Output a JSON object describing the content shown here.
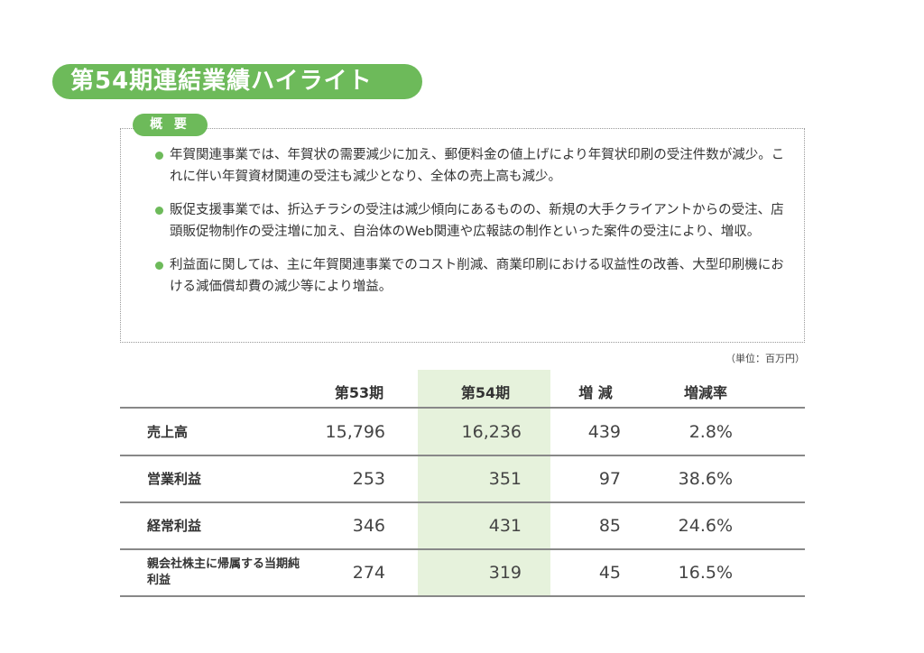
{
  "title": "第54期連結業績ハイライト",
  "summary": {
    "tag": "概 要",
    "bullets": [
      "年賀関連事業では、年賀状の需要減少に加え、郵便料金の値上げにより年賀状印刷の受注件数が減少。これに伴い年賀資材関連の受注も減少となり、全体の売上高も減少。",
      "販促支援事業では、折込チラシの受注は減少傾向にあるものの、新規の大手クライアントからの受注、店頭販促物制作の受注増に加え、自治体のWeb関連や広報誌の制作といった案件の受注により、増収。",
      "利益面に関しては、主に年賀関連事業でのコスト削減、商業印刷における収益性の改善、大型印刷機における減価償却費の減少等により増益。"
    ]
  },
  "table": {
    "unit": "（単位：百万円）",
    "headers": [
      "第53期",
      "第54期",
      "増 減",
      "増減率"
    ],
    "rows": [
      {
        "label": "売上高",
        "v53": "15,796",
        "v54": "16,236",
        "diff": "439",
        "rate": "2.8%"
      },
      {
        "label": "営業利益",
        "v53": "253",
        "v54": "351",
        "diff": "97",
        "rate": "38.6%"
      },
      {
        "label": "経常利益",
        "v53": "346",
        "v54": "431",
        "diff": "85",
        "rate": "24.6%"
      },
      {
        "label": "親会社株主に帰属する当期純利益",
        "v53": "274",
        "v54": "319",
        "diff": "45",
        "rate": "16.5%"
      }
    ]
  },
  "colors": {
    "accent": "#6dba5a",
    "highlight": "#e6f2dc"
  }
}
